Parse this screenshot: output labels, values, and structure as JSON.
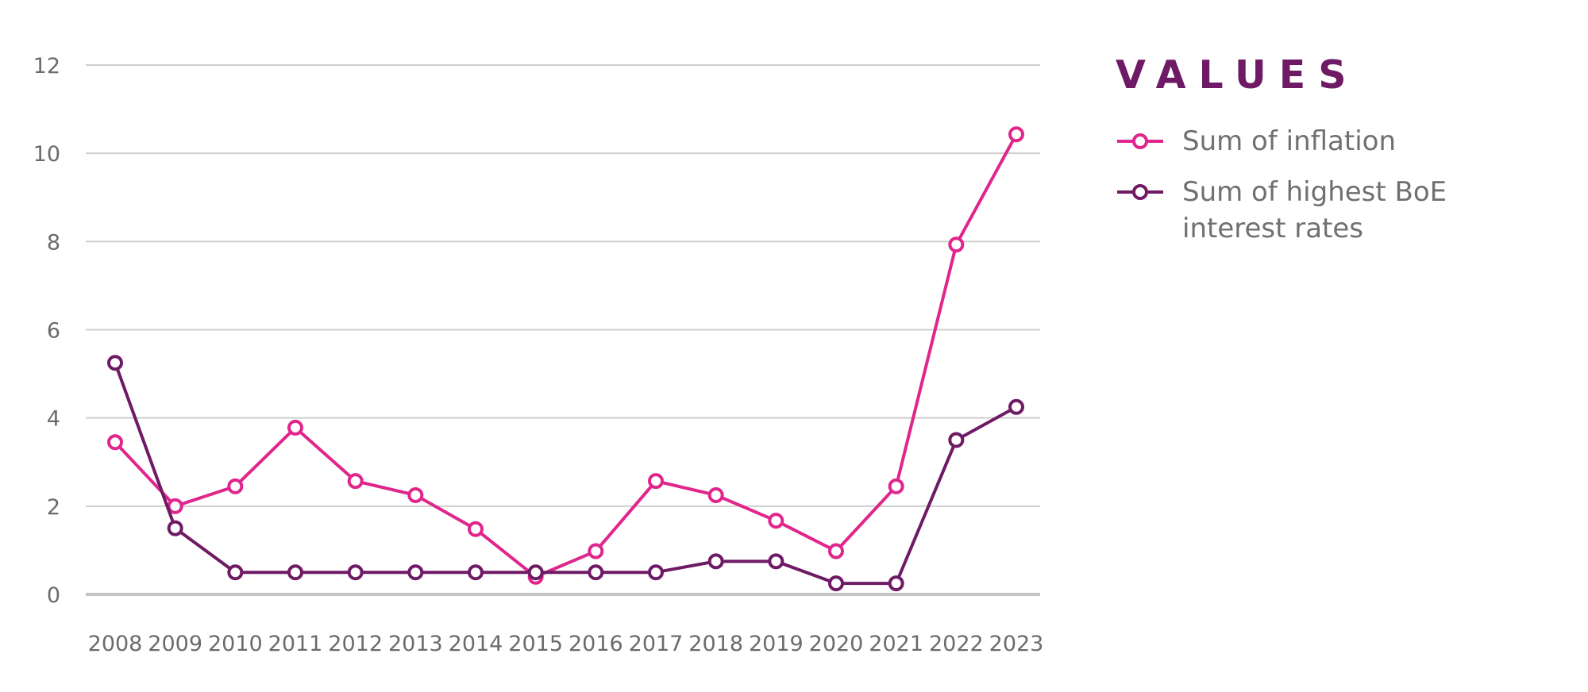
{
  "chart_data": {
    "type": "line",
    "title": "",
    "xlabel": "",
    "ylabel": "",
    "x": [
      "2008",
      "2009",
      "2010",
      "2011",
      "2012",
      "2013",
      "2014",
      "2015",
      "2016",
      "2017",
      "2018",
      "2019",
      "2020",
      "2021",
      "2022",
      "2023"
    ],
    "ylim": [
      0,
      12
    ],
    "yticks": [
      0,
      2,
      4,
      6,
      8,
      10,
      12
    ],
    "grid": true,
    "legend_title": "VALUES",
    "legend_position": "right",
    "series": [
      {
        "name": "Sum of inflation",
        "color": "#e0268c",
        "values": [
          3.45,
          2.0,
          2.45,
          3.78,
          2.57,
          2.25,
          1.48,
          0.4,
          0.98,
          2.57,
          2.25,
          1.67,
          0.98,
          2.45,
          7.93,
          10.43
        ]
      },
      {
        "name": "Sum of highest BoE interest rates",
        "color": "#6e1a64",
        "values": [
          5.25,
          1.5,
          0.5,
          0.5,
          0.5,
          0.5,
          0.5,
          0.5,
          0.5,
          0.5,
          0.75,
          0.75,
          0.25,
          0.25,
          3.5,
          4.25
        ]
      }
    ]
  }
}
